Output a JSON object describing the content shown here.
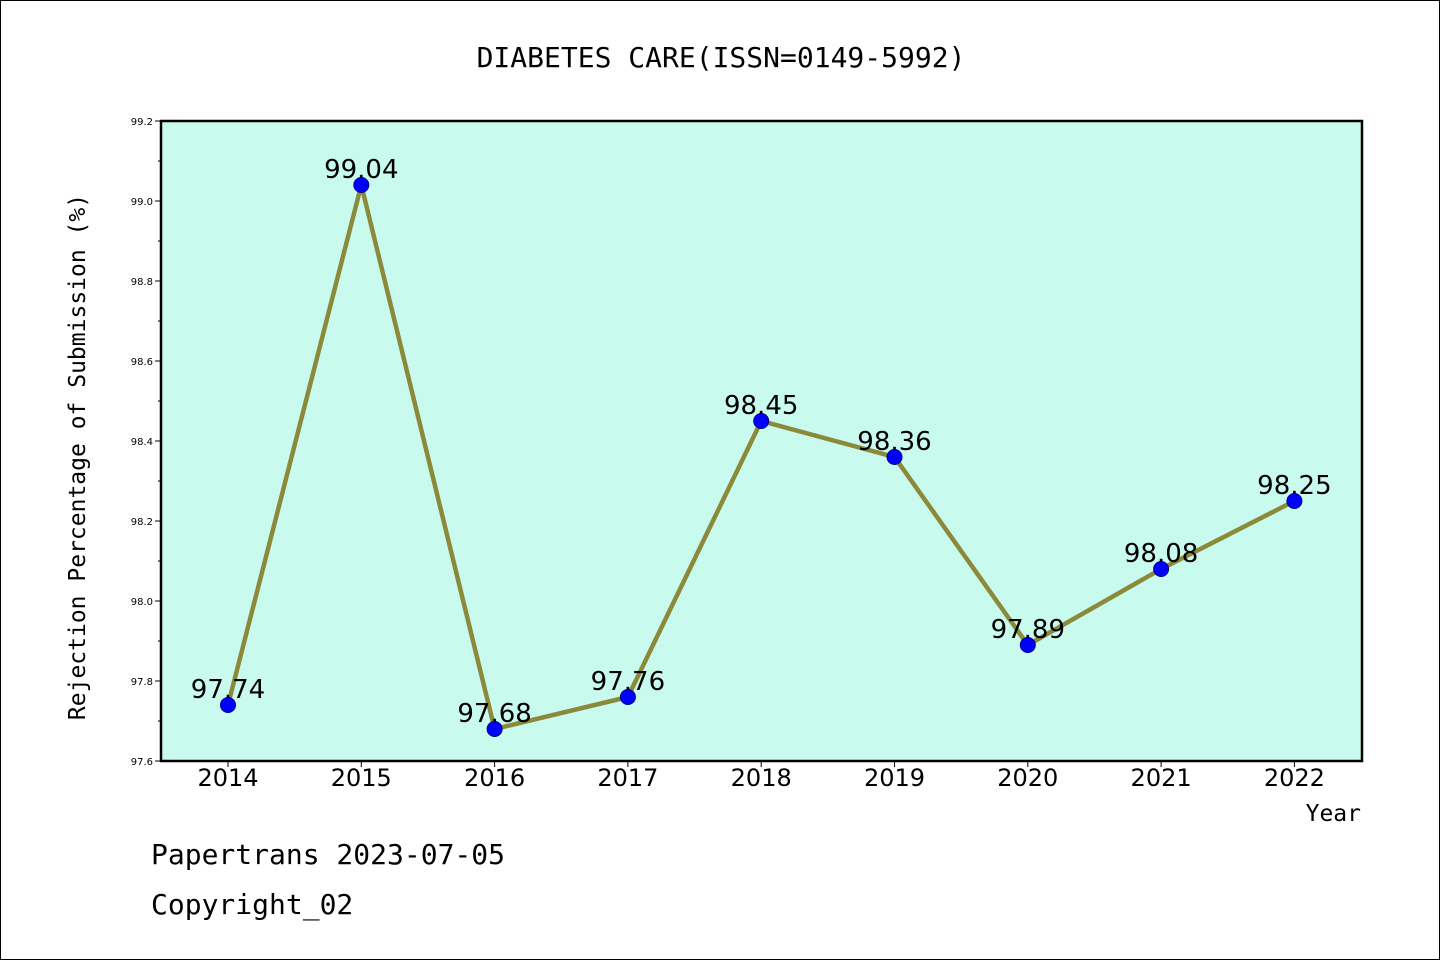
{
  "chart_data": {
    "type": "line",
    "title": "DIABETES CARE(ISSN=0149-5992)",
    "xlabel": "Year",
    "ylabel": "Rejection Percentage of Submission (%)",
    "categories": [
      "2014",
      "2015",
      "2016",
      "2017",
      "2018",
      "2019",
      "2020",
      "2021",
      "2022"
    ],
    "values": [
      97.74,
      99.04,
      97.68,
      97.76,
      98.45,
      98.36,
      97.89,
      98.08,
      98.25
    ],
    "data_labels": [
      "97.74",
      "99.04",
      "97.68",
      "97.76",
      "98.45",
      "98.36",
      "97.89",
      "98.08",
      "98.25"
    ],
    "ylim": [
      97.6,
      99.2
    ],
    "yticks": [
      "97.6",
      "97.8",
      "98.0",
      "98.2",
      "98.4",
      "98.6",
      "98.8",
      "99.0",
      "99.2"
    ],
    "grid": false,
    "colors": {
      "plot_background": "#c8fbee",
      "line": "#8b8a3a",
      "marker_fill": "#0000ff",
      "marker_edge": "#00008b"
    }
  },
  "footer": {
    "line1": "Papertrans 2023-07-05",
    "line2": "Copyright_02"
  }
}
